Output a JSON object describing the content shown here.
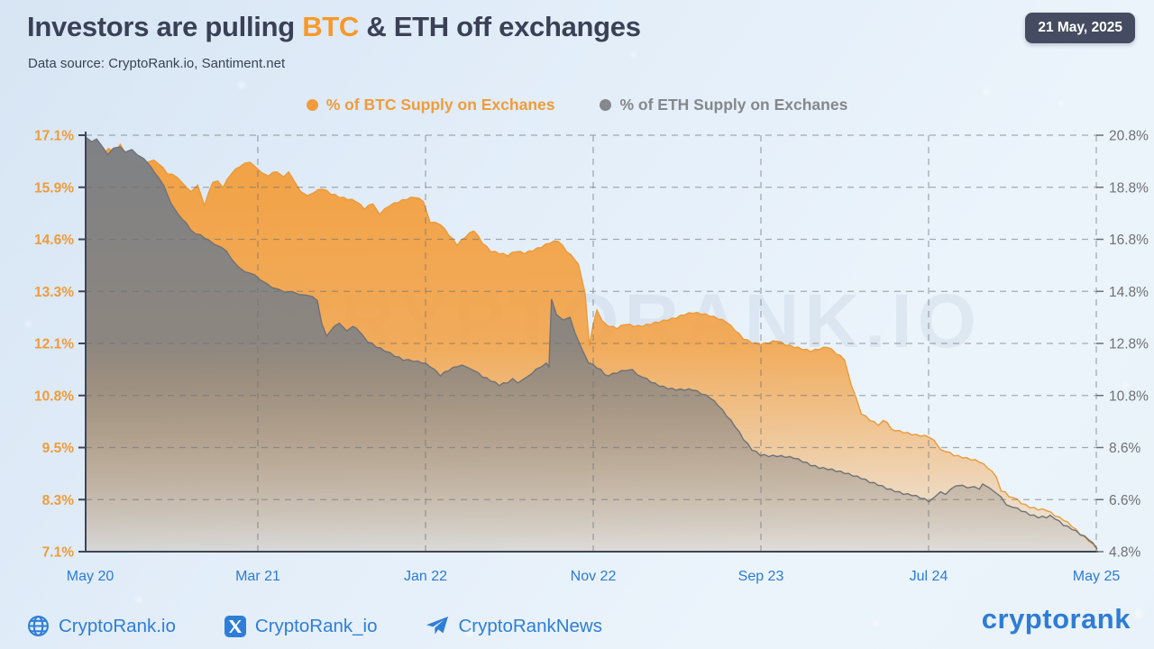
{
  "header": {
    "title_prefix": "Investors are pulling ",
    "title_btc": "BTC",
    "title_suffix": " & ETH off exchanges",
    "subtitle": "Data source: CryptoRank.io, Santiment.net",
    "date_badge": "21 May, 2025"
  },
  "legend": [
    {
      "label": "% of BTC Supply on Exchanes",
      "color": "#F09C3C"
    },
    {
      "label": "% of ETH Supply on Exchanes",
      "color": "#85888C"
    }
  ],
  "watermark": "CRYPTORANK.IO",
  "footer": {
    "links": [
      {
        "icon": "globe-icon",
        "label": "CryptoRank.io"
      },
      {
        "icon": "x-icon",
        "label": "CryptoRank_io"
      },
      {
        "icon": "telegram-icon",
        "label": "CryptoRankNews"
      }
    ],
    "logo": "cryptorank"
  },
  "chart_data": {
    "type": "area",
    "title": "Investors are pulling BTC & ETH off exchanges",
    "grid": "dashed",
    "grid_color": "#6B7076",
    "x_axis": {
      "labels": [
        "May 20",
        "Mar 21",
        "Jan 22",
        "Nov 22",
        "Sep 23",
        "Jul 24",
        "May 25"
      ],
      "label_months": [
        0,
        10,
        20,
        30,
        40,
        50,
        60
      ],
      "color": "#2B7CD9"
    },
    "left_axis": {
      "name": "% of BTC Supply on Exchanges",
      "ticks": [
        "17.1%",
        "15.9%",
        "14.6%",
        "13.3%",
        "12.1%",
        "10.8%",
        "9.5%",
        "8.3%",
        "7.1%"
      ],
      "max": 17.1,
      "min": 7.1,
      "color": "#EF9C3A"
    },
    "right_axis": {
      "name": "% of ETH Supply on Exchanges",
      "ticks": [
        "20.8%",
        "18.8%",
        "16.8%",
        "14.8%",
        "12.8%",
        "10.8%",
        "8.6%",
        "6.6%",
        "4.8%"
      ],
      "max": 20.8,
      "min": 4.8,
      "color": "#6E7175"
    },
    "series": [
      {
        "name": "% of BTC Supply on Exchanes",
        "axis": "left",
        "fill": "#F3A143",
        "stroke": "#EC9A39",
        "points": [
          [
            0,
            17.05
          ],
          [
            0.3,
            16.7
          ],
          [
            0.6,
            16.88
          ],
          [
            1,
            16.65
          ],
          [
            1.3,
            16.78
          ],
          [
            1.7,
            16.7
          ],
          [
            2,
            16.88
          ],
          [
            2.4,
            16.6
          ],
          [
            2.7,
            16.5
          ],
          [
            3,
            16.45
          ],
          [
            3.3,
            16.4
          ],
          [
            3.6,
            16.45
          ],
          [
            4,
            16.5
          ],
          [
            4.3,
            16.4
          ],
          [
            4.8,
            16.17
          ],
          [
            5.4,
            16.08
          ],
          [
            5.8,
            15.9
          ],
          [
            6.2,
            15.74
          ],
          [
            6.6,
            15.9
          ],
          [
            7,
            15.41
          ],
          [
            7.5,
            15.97
          ],
          [
            7.8,
            16.0
          ],
          [
            8.1,
            15.84
          ],
          [
            8.6,
            16.17
          ],
          [
            9.1,
            16.34
          ],
          [
            9.7,
            16.45
          ],
          [
            10,
            16.35
          ],
          [
            10.4,
            16.2
          ],
          [
            10.8,
            16.12
          ],
          [
            11.3,
            16.22
          ],
          [
            11.7,
            16.1
          ],
          [
            12,
            16.22
          ],
          [
            12.4,
            15.95
          ],
          [
            12.7,
            15.75
          ],
          [
            13.1,
            15.65
          ],
          [
            13.5,
            15.72
          ],
          [
            14,
            15.8
          ],
          [
            14.5,
            15.68
          ],
          [
            15,
            15.6
          ],
          [
            15.5,
            15.55
          ],
          [
            16,
            15.5
          ],
          [
            16.5,
            15.32
          ],
          [
            17,
            15.45
          ],
          [
            17.4,
            15.2
          ],
          [
            18,
            15.4
          ],
          [
            18.5,
            15.48
          ],
          [
            19,
            15.55
          ],
          [
            19.5,
            15.6
          ],
          [
            20,
            15.5
          ],
          [
            20.4,
            15.0
          ],
          [
            21,
            14.95
          ],
          [
            21.5,
            14.7
          ],
          [
            22,
            14.45
          ],
          [
            22.5,
            14.65
          ],
          [
            23,
            14.8
          ],
          [
            23.5,
            14.5
          ],
          [
            24,
            14.3
          ],
          [
            24.5,
            14.25
          ],
          [
            25,
            14.2
          ],
          [
            25.5,
            14.3
          ],
          [
            26,
            14.25
          ],
          [
            26.5,
            14.32
          ],
          [
            27,
            14.4
          ],
          [
            27.5,
            14.5
          ],
          [
            28,
            14.55
          ],
          [
            28.5,
            14.3
          ],
          [
            29,
            14.1
          ],
          [
            29.2,
            14.0
          ],
          [
            29.6,
            13.3
          ],
          [
            29.85,
            12.05
          ],
          [
            30.1,
            12.6
          ],
          [
            30.3,
            12.9
          ],
          [
            30.6,
            12.65
          ],
          [
            31,
            12.5
          ],
          [
            31.5,
            12.45
          ],
          [
            32,
            12.55
          ],
          [
            32.5,
            12.5
          ],
          [
            33,
            12.5
          ],
          [
            33.5,
            12.55
          ],
          [
            34,
            12.6
          ],
          [
            34.5,
            12.65
          ],
          [
            35,
            12.7
          ],
          [
            35.5,
            12.78
          ],
          [
            36,
            12.82
          ],
          [
            36.5,
            12.8
          ],
          [
            37,
            12.75
          ],
          [
            37.5,
            12.68
          ],
          [
            38,
            12.6
          ],
          [
            38.5,
            12.4
          ],
          [
            39,
            12.2
          ],
          [
            39.5,
            12.1
          ],
          [
            40,
            12.06
          ],
          [
            40.5,
            12.1
          ],
          [
            41,
            12.15
          ],
          [
            41.5,
            12.05
          ],
          [
            42,
            12.0
          ],
          [
            42.5,
            11.95
          ],
          [
            43,
            11.9
          ],
          [
            43.5,
            11.95
          ],
          [
            44,
            12.0
          ],
          [
            44.5,
            11.85
          ],
          [
            45,
            11.7
          ],
          [
            45.4,
            11.1
          ],
          [
            46,
            10.4
          ],
          [
            46.5,
            10.25
          ],
          [
            47,
            10.13
          ],
          [
            47.3,
            10.25
          ],
          [
            48,
            10.0
          ],
          [
            48.5,
            9.95
          ],
          [
            49,
            9.9
          ],
          [
            49.5,
            9.87
          ],
          [
            50,
            9.85
          ],
          [
            50.3,
            9.78
          ],
          [
            50.7,
            9.55
          ],
          [
            51,
            9.5
          ],
          [
            51.5,
            9.4
          ],
          [
            52,
            9.35
          ],
          [
            52.5,
            9.3
          ],
          [
            53,
            9.25
          ],
          [
            53.5,
            9.1
          ],
          [
            54,
            8.9
          ],
          [
            54.3,
            8.55
          ],
          [
            55,
            8.4
          ],
          [
            55.5,
            8.25
          ],
          [
            56,
            8.15
          ],
          [
            56.5,
            8.1
          ],
          [
            57,
            8.08
          ],
          [
            57.5,
            7.95
          ],
          [
            58,
            7.85
          ],
          [
            58.5,
            7.7
          ],
          [
            59,
            7.5
          ],
          [
            59.5,
            7.35
          ],
          [
            60,
            7.15
          ]
        ]
      },
      {
        "name": "% of ETH Supply on Exchanes",
        "axis": "right",
        "fill": "#7E8185",
        "stroke": "#6F7276",
        "points": [
          [
            0,
            20.7
          ],
          [
            0.3,
            20.55
          ],
          [
            0.6,
            20.65
          ],
          [
            1,
            20.3
          ],
          [
            1.25,
            20.05
          ],
          [
            1.6,
            20.3
          ],
          [
            2,
            20.35
          ],
          [
            2.3,
            20.15
          ],
          [
            2.7,
            20.25
          ],
          [
            3,
            20.05
          ],
          [
            3.4,
            19.9
          ],
          [
            3.8,
            19.6
          ],
          [
            4,
            19.4
          ],
          [
            4.3,
            19.15
          ],
          [
            4.6,
            18.85
          ],
          [
            5,
            18.2
          ],
          [
            5.4,
            17.8
          ],
          [
            5.7,
            17.55
          ],
          [
            5.9,
            17.45
          ],
          [
            6.2,
            17.15
          ],
          [
            6.5,
            17.0
          ],
          [
            7,
            16.85
          ],
          [
            7.3,
            16.75
          ],
          [
            7.6,
            16.6
          ],
          [
            8,
            16.5
          ],
          [
            8.3,
            16.35
          ],
          [
            8.6,
            16.05
          ],
          [
            9,
            15.75
          ],
          [
            9.4,
            15.55
          ],
          [
            9.7,
            15.5
          ],
          [
            10,
            15.43
          ],
          [
            10.3,
            15.25
          ],
          [
            10.7,
            15.1
          ],
          [
            11,
            14.95
          ],
          [
            11.4,
            14.88
          ],
          [
            11.8,
            14.76
          ],
          [
            12.2,
            14.8
          ],
          [
            12.6,
            14.68
          ],
          [
            13,
            14.66
          ],
          [
            13.4,
            14.6
          ],
          [
            13.7,
            14.45
          ],
          [
            13.95,
            13.6
          ],
          [
            14.25,
            13.08
          ],
          [
            14.7,
            13.45
          ],
          [
            15,
            13.58
          ],
          [
            15.45,
            13.28
          ],
          [
            15.8,
            13.45
          ],
          [
            16,
            13.4
          ],
          [
            16.35,
            13.15
          ],
          [
            16.7,
            12.85
          ],
          [
            17.2,
            12.65
          ],
          [
            17.7,
            12.5
          ],
          [
            18.3,
            12.3
          ],
          [
            18.8,
            12.15
          ],
          [
            19.4,
            12.1
          ],
          [
            19.9,
            12.05
          ],
          [
            20.4,
            11.9
          ],
          [
            21,
            11.55
          ],
          [
            21.5,
            11.75
          ],
          [
            22,
            11.9
          ],
          [
            22.3,
            11.97
          ],
          [
            22.7,
            11.85
          ],
          [
            23,
            11.75
          ],
          [
            23.5,
            11.5
          ],
          [
            24,
            11.35
          ],
          [
            24.5,
            11.18
          ],
          [
            25,
            11.28
          ],
          [
            25.3,
            11.45
          ],
          [
            25.6,
            11.28
          ],
          [
            26,
            11.45
          ],
          [
            26.4,
            11.62
          ],
          [
            27,
            11.9
          ],
          [
            27.3,
            12.05
          ],
          [
            27.45,
            11.9
          ],
          [
            27.6,
            14.5
          ],
          [
            27.9,
            13.9
          ],
          [
            28.3,
            13.7
          ],
          [
            28.7,
            13.8
          ],
          [
            29,
            13.2
          ],
          [
            29.4,
            12.6
          ],
          [
            29.8,
            12.05
          ],
          [
            30.3,
            11.85
          ],
          [
            31,
            11.55
          ],
          [
            31.5,
            11.65
          ],
          [
            32,
            11.75
          ],
          [
            32.4,
            11.8
          ],
          [
            32.7,
            11.6
          ],
          [
            33,
            11.5
          ],
          [
            33.5,
            11.3
          ],
          [
            34,
            11.15
          ],
          [
            34.5,
            11.05
          ],
          [
            35,
            11.0
          ],
          [
            35.5,
            11.0
          ],
          [
            36,
            11.0
          ],
          [
            36.5,
            10.85
          ],
          [
            37,
            10.7
          ],
          [
            37.5,
            10.4
          ],
          [
            38,
            10.0
          ],
          [
            38.5,
            9.6
          ],
          [
            39,
            9.1
          ],
          [
            39.5,
            8.7
          ],
          [
            40,
            8.5
          ],
          [
            40.5,
            8.45
          ],
          [
            41,
            8.45
          ],
          [
            41.5,
            8.42
          ],
          [
            42,
            8.38
          ],
          [
            42.5,
            8.25
          ],
          [
            43,
            8.1
          ],
          [
            43.5,
            8.0
          ],
          [
            44,
            7.95
          ],
          [
            44.5,
            7.88
          ],
          [
            45,
            7.8
          ],
          [
            45.5,
            7.7
          ],
          [
            46,
            7.6
          ],
          [
            46.5,
            7.45
          ],
          [
            47,
            7.35
          ],
          [
            47.5,
            7.2
          ],
          [
            48,
            7.1
          ],
          [
            48.5,
            7.0
          ],
          [
            49,
            6.95
          ],
          [
            49.5,
            6.85
          ],
          [
            50,
            6.72
          ],
          [
            50.35,
            6.9
          ],
          [
            50.7,
            7.1
          ],
          [
            51,
            7.0
          ],
          [
            51.3,
            7.2
          ],
          [
            51.6,
            7.32
          ],
          [
            52,
            7.35
          ],
          [
            52.3,
            7.25
          ],
          [
            52.7,
            7.3
          ],
          [
            53,
            7.2
          ],
          [
            53.2,
            7.4
          ],
          [
            53.6,
            7.25
          ],
          [
            54,
            7.05
          ],
          [
            54.3,
            6.9
          ],
          [
            54.6,
            6.6
          ],
          [
            55,
            6.5
          ],
          [
            55.5,
            6.35
          ],
          [
            56,
            6.2
          ],
          [
            56.5,
            6.1
          ],
          [
            57,
            6.1
          ],
          [
            57.2,
            6.2
          ],
          [
            57.5,
            6.05
          ],
          [
            58,
            5.8
          ],
          [
            58.5,
            5.65
          ],
          [
            59,
            5.45
          ],
          [
            59.5,
            5.25
          ],
          [
            60,
            4.9
          ]
        ]
      }
    ]
  }
}
